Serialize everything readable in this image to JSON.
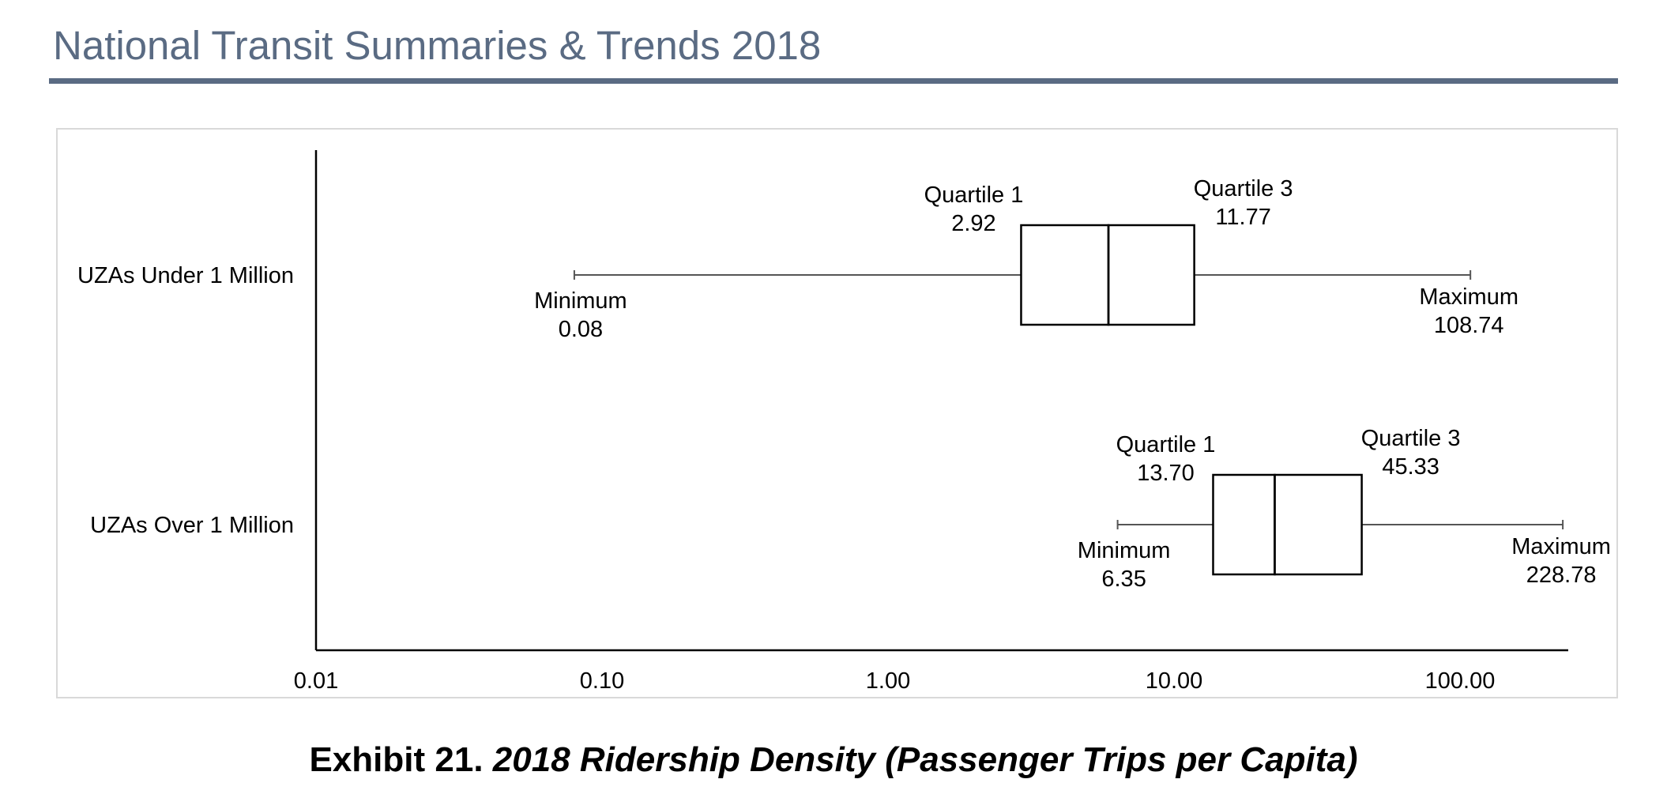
{
  "header": {
    "title": "National Transit Summaries & Trends 2018"
  },
  "caption": {
    "label": "Exhibit 21.",
    "title": "2018 Ridership Density (Passenger Trips per Capita)"
  },
  "chart_data": {
    "type": "box",
    "orientation": "horizontal",
    "x_scale": "log",
    "x_ticks": [
      {
        "value": 0.01,
        "label": "0.01"
      },
      {
        "value": 0.1,
        "label": "0.10"
      },
      {
        "value": 1,
        "label": "1.00"
      },
      {
        "value": 10,
        "label": "10.00"
      },
      {
        "value": 100,
        "label": "100.00"
      }
    ],
    "xlim": [
      0.01,
      300
    ],
    "grid": false,
    "legend": "none",
    "colors": {
      "axis": "#000000",
      "whisker": "#555555",
      "box": "#000000"
    },
    "series": [
      {
        "category": "UZAs Under 1 Million",
        "min": 0.08,
        "q1": 2.92,
        "median": 5.9,
        "q3": 11.77,
        "max": 108.74,
        "labels": {
          "min": [
            "Minimum",
            "0.08"
          ],
          "q1": [
            "Quartile 1",
            "2.92"
          ],
          "q3": [
            "Quartile 3",
            "11.77"
          ],
          "max": [
            "Maximum",
            "108.74"
          ]
        }
      },
      {
        "category": "UZAs Over 1 Million",
        "min": 6.35,
        "q1": 13.7,
        "median": 22.5,
        "q3": 45.33,
        "max": 228.78,
        "labels": {
          "min": [
            "Minimum",
            "6.35"
          ],
          "q1": [
            "Quartile 1",
            "13.70"
          ],
          "q3": [
            "Quartile 3",
            "45.33"
          ],
          "max": [
            "Maximum",
            "228.78"
          ]
        }
      }
    ]
  }
}
